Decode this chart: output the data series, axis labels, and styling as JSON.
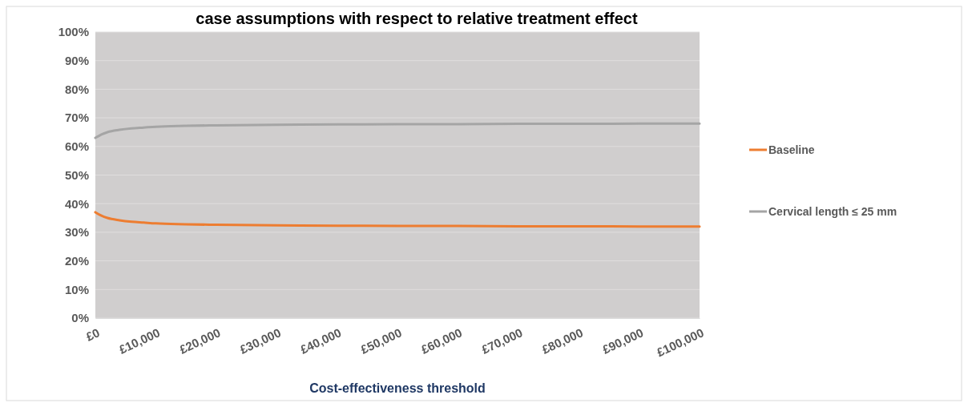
{
  "chart_data": {
    "type": "line",
    "title": "case assumptions with respect to relative treatment effect",
    "xlabel": "Cost-effectiveness threshold",
    "x": [
      0,
      1000,
      2000,
      4000,
      6000,
      8000,
      10000,
      15000,
      20000,
      30000,
      40000,
      50000,
      60000,
      70000,
      80000,
      90000,
      100000
    ],
    "series": [
      {
        "name": "Baseline",
        "color": "#ed7d31",
        "values": [
          37,
          35.8,
          35,
          34.2,
          33.7,
          33.4,
          33.1,
          32.8,
          32.6,
          32.4,
          32.3,
          32.2,
          32.2,
          32.1,
          32.1,
          32,
          32
        ]
      },
      {
        "name": "Cervical length ≤ 25 mm",
        "color": "#a5a5a5",
        "values": [
          63,
          64.2,
          65,
          65.8,
          66.3,
          66.6,
          66.9,
          67.2,
          67.4,
          67.6,
          67.7,
          67.8,
          67.8,
          67.9,
          67.9,
          68,
          68
        ]
      }
    ],
    "xlim": [
      0,
      100000
    ],
    "xticks": [
      {
        "value": 0,
        "label": "£0"
      },
      {
        "value": 10000,
        "label": "£10,000"
      },
      {
        "value": 20000,
        "label": "£20,000"
      },
      {
        "value": 30000,
        "label": "£30,000"
      },
      {
        "value": 40000,
        "label": "£40,000"
      },
      {
        "value": 50000,
        "label": "£50,000"
      },
      {
        "value": 60000,
        "label": "£60,000"
      },
      {
        "value": 70000,
        "label": "£70,000"
      },
      {
        "value": 80000,
        "label": "£80,000"
      },
      {
        "value": 90000,
        "label": "£90,000"
      },
      {
        "value": 100000,
        "label": "£100,000"
      }
    ],
    "ylim": [
      0,
      100
    ],
    "yticks": [
      {
        "value": 0,
        "label": "0%"
      },
      {
        "value": 10,
        "label": "10%"
      },
      {
        "value": 20,
        "label": "20%"
      },
      {
        "value": 30,
        "label": "30%"
      },
      {
        "value": 40,
        "label": "40%"
      },
      {
        "value": 50,
        "label": "50%"
      },
      {
        "value": 60,
        "label": "60%"
      },
      {
        "value": 70,
        "label": "70%"
      },
      {
        "value": 80,
        "label": "80%"
      },
      {
        "value": 90,
        "label": "90%"
      },
      {
        "value": 100,
        "label": "100%"
      }
    ],
    "grid": "y",
    "legend": "right",
    "marker": "none",
    "line_style": "solid"
  }
}
